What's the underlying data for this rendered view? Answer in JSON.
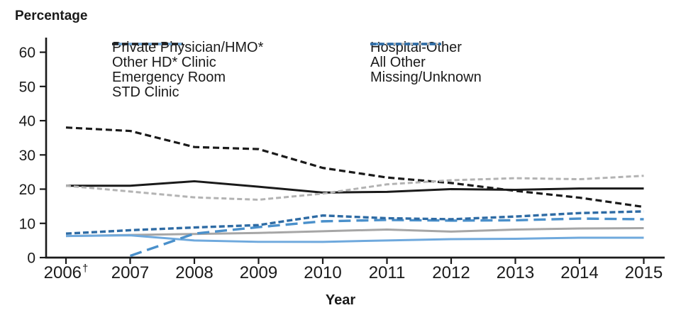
{
  "title": "Percentage",
  "xlabel": "Year",
  "colors": {
    "axis": "#1a1a1a",
    "black": "#1a1a1a",
    "gray_solid": "#a6a6a6",
    "gray_dashed": "#b3b3b3",
    "light_blue": "#6fa9dd",
    "medium_blue": "#4a90cb",
    "dark_blue": "#2e6ba4"
  },
  "chart_data": {
    "type": "line",
    "x": [
      2006,
      2007,
      2008,
      2009,
      2010,
      2011,
      2012,
      2013,
      2014,
      2015
    ],
    "x_tick_labels": [
      "2006†",
      "2007",
      "2008",
      "2009",
      "2010",
      "2011",
      "2012",
      "2013",
      "2014",
      "2015"
    ],
    "y_ticks": [
      0,
      10,
      20,
      30,
      40,
      50,
      60
    ],
    "ylim": [
      0,
      60
    ],
    "ylabel": "Percentage",
    "xlabel": "Year",
    "grid": false,
    "legend_position": "top inside, two columns",
    "series": [
      {
        "name": "Private Physician/HMO*",
        "color": "#1a1a1a",
        "dasharray": "",
        "width": 3,
        "legend_column": 1,
        "values": [
          21,
          21,
          22.3,
          20.7,
          19,
          19.2,
          20,
          19.8,
          20.2,
          20.2
        ]
      },
      {
        "name": "Other HD* Clinic",
        "color": "#a6a6a6",
        "dasharray": "",
        "width": 3,
        "legend_column": 1,
        "values": [
          6.3,
          6.6,
          6.9,
          7.2,
          7.7,
          8.2,
          7.6,
          8.2,
          8.5,
          8.6
        ]
      },
      {
        "name": "Emergency Room",
        "color": "#6fa9dd",
        "dasharray": "",
        "width": 3,
        "legend_column": 1,
        "values": [
          6.3,
          6.5,
          5,
          4.6,
          4.6,
          5,
          5.4,
          5.5,
          5.8,
          5.8
        ]
      },
      {
        "name": "STD Clinic",
        "color": "#1a1a1a",
        "dasharray": "9 5",
        "width": 3.2,
        "legend_column": 1,
        "values": [
          38,
          37,
          32.3,
          31.7,
          26.2,
          23.4,
          21.8,
          19.5,
          17.5,
          14.8
        ]
      },
      {
        "name": "Hospital-Other",
        "color": "#4a90cb",
        "dasharray": "17 8",
        "width": 3.4,
        "legend_column": 2,
        "values": [
          null,
          0.5,
          7,
          8.9,
          10.6,
          11,
          10.8,
          10.9,
          11.4,
          11.2
        ]
      },
      {
        "name": "All Other",
        "color": "#b3b3b3",
        "dasharray": "7 4",
        "width": 3,
        "legend_column": 2,
        "values": [
          21,
          19.3,
          17.6,
          16.9,
          18.7,
          21.4,
          22.6,
          23.2,
          22.9,
          23.9
        ]
      },
      {
        "name": "Missing/Unknown",
        "color": "#2e6ba4",
        "dasharray": "8 4",
        "width": 3.4,
        "legend_column": 2,
        "values": [
          7,
          8,
          8.8,
          9.5,
          12.3,
          11.5,
          11.2,
          12,
          13,
          13.5
        ]
      }
    ]
  }
}
